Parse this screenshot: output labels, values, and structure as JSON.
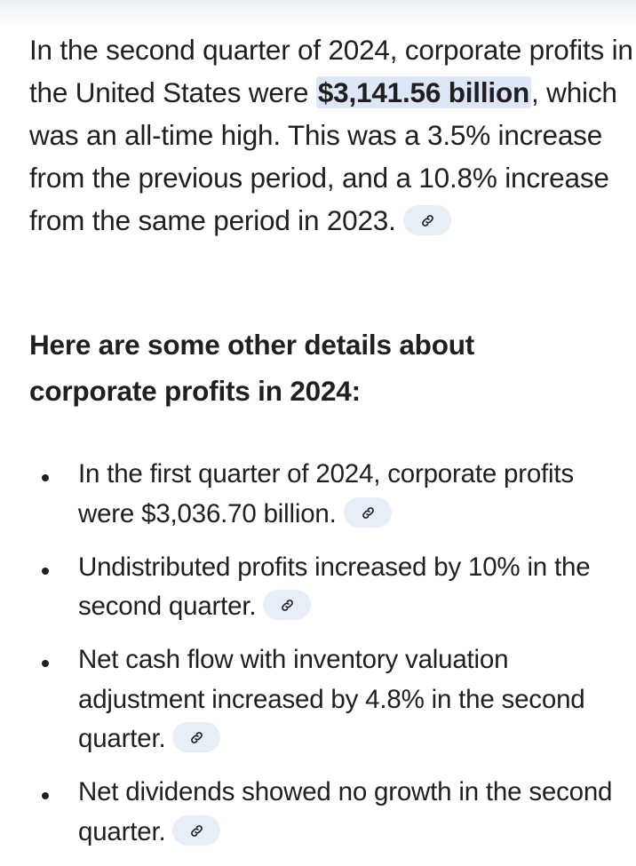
{
  "response": {
    "intro": {
      "before": "In the second quarter of 2024, corporate profits in the United States were ",
      "highlight": "$3,141.56 billion",
      "after": ", which was an all-time high. This was a 3.5% increase from the previous period, and a 10.8% increase from the same period in 2023."
    },
    "heading": "Here are some other details about corporate profits in 2024:",
    "bullets": [
      {
        "text": "In the first quarter of 2024, corporate profits were $3,036.70 billion."
      },
      {
        "text": "Undistributed profits increased by 10% in the second quarter."
      },
      {
        "text": "Net cash flow with inventory valuation adjustment increased by 4.8% in the second quarter."
      },
      {
        "text": "Net dividends showed no growth in the second quarter."
      }
    ],
    "source_chip_icon": "link-icon"
  },
  "colors": {
    "highlight_bg": "#dde7f7",
    "chip_bg": "#e8eef8",
    "text": "#1f1f1f"
  }
}
